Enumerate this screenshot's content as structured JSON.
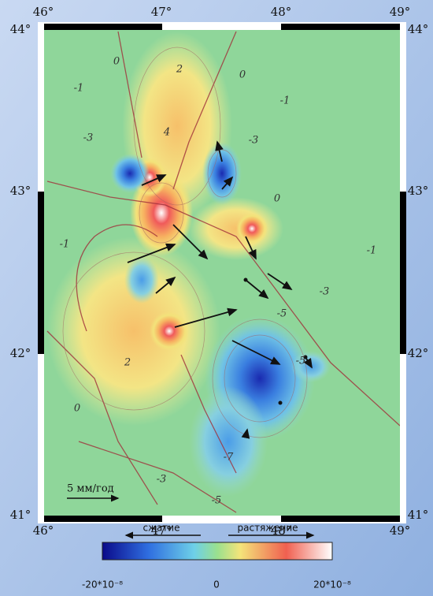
{
  "map": {
    "lon_labels": [
      "46°",
      "47°",
      "48°",
      "49°"
    ],
    "lat_labels": [
      "44°",
      "43°",
      "42°",
      "41°"
    ],
    "contour_labels": [
      "0",
      "-1",
      "2",
      "-3",
      "4",
      "-1",
      "-3",
      "0",
      "-1",
      "-1",
      "-3",
      "-5",
      "2",
      "0",
      "-5",
      "-7",
      "-3",
      "-5",
      "0"
    ],
    "scale_label": "5 мм/год"
  },
  "legend": {
    "compression": "сжатие",
    "extension": "растяжение",
    "min_label": "-20*10⁻⁸",
    "mid_label": "0",
    "max_label": "20*10⁻⁸"
  }
}
